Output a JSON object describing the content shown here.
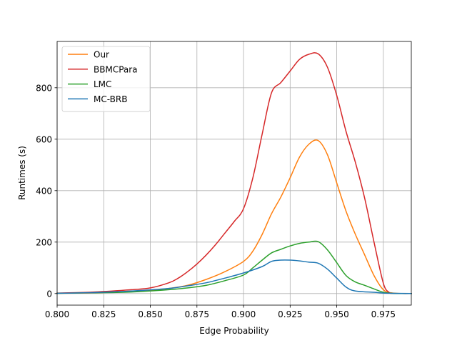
{
  "chart_data": {
    "type": "line",
    "title": "",
    "xlabel": "Edge Probability",
    "ylabel": "Runtimes (s)",
    "xlim": [
      0.8,
      0.99
    ],
    "ylim": [
      -45,
      980
    ],
    "grid": true,
    "legend_position": "top-left",
    "x_ticks": [
      "0.800",
      "0.825",
      "0.850",
      "0.875",
      "0.900",
      "0.925",
      "0.950",
      "0.975"
    ],
    "x_tick_values": [
      0.8,
      0.825,
      0.85,
      0.875,
      0.9,
      0.925,
      0.95,
      0.975
    ],
    "y_ticks": [
      "0",
      "200",
      "400",
      "600",
      "800"
    ],
    "y_tick_values": [
      0,
      200,
      400,
      600,
      800
    ],
    "series": [
      {
        "name": "Our",
        "color": "#ff7f0e",
        "x": [
          0.8,
          0.82,
          0.84,
          0.85,
          0.86,
          0.87,
          0.88,
          0.89,
          0.9,
          0.905,
          0.91,
          0.915,
          0.92,
          0.925,
          0.93,
          0.935,
          0.94,
          0.945,
          0.95,
          0.955,
          0.96,
          0.965,
          0.97,
          0.975,
          0.98,
          0.99
        ],
        "values": [
          1,
          3,
          8,
          12,
          20,
          32,
          55,
          85,
          125,
          165,
          230,
          310,
          375,
          450,
          530,
          580,
          595,
          540,
          430,
          320,
          230,
          150,
          70,
          15,
          2,
          0
        ]
      },
      {
        "name": "BBMCPara",
        "color": "#d62728",
        "x": [
          0.8,
          0.82,
          0.84,
          0.85,
          0.86,
          0.865,
          0.87,
          0.875,
          0.88,
          0.885,
          0.89,
          0.895,
          0.9,
          0.905,
          0.91,
          0.915,
          0.92,
          0.925,
          0.93,
          0.935,
          0.94,
          0.945,
          0.95,
          0.955,
          0.96,
          0.965,
          0.97,
          0.975,
          0.978,
          0.98,
          0.985,
          0.99
        ],
        "values": [
          2,
          6,
          15,
          22,
          42,
          60,
          85,
          115,
          150,
          190,
          235,
          280,
          330,
          450,
          620,
          780,
          820,
          865,
          910,
          930,
          932,
          880,
          770,
          630,
          510,
          370,
          200,
          40,
          5,
          1,
          0,
          0
        ]
      },
      {
        "name": "LMC",
        "color": "#2ca02c",
        "x": [
          0.8,
          0.82,
          0.84,
          0.86,
          0.87,
          0.88,
          0.89,
          0.9,
          0.905,
          0.91,
          0.915,
          0.92,
          0.925,
          0.93,
          0.935,
          0.94,
          0.945,
          0.95,
          0.955,
          0.96,
          0.965,
          0.97,
          0.975,
          0.98,
          0.99
        ],
        "values": [
          1,
          3,
          6,
          15,
          22,
          32,
          50,
          72,
          100,
          130,
          158,
          172,
          185,
          195,
          200,
          202,
          170,
          120,
          70,
          45,
          32,
          18,
          5,
          1,
          0
        ]
      },
      {
        "name": "MC-BRB",
        "color": "#1f77b4",
        "x": [
          0.8,
          0.82,
          0.84,
          0.86,
          0.87,
          0.88,
          0.89,
          0.9,
          0.91,
          0.915,
          0.92,
          0.925,
          0.93,
          0.935,
          0.94,
          0.945,
          0.95,
          0.955,
          0.96,
          0.97,
          0.975,
          0.98,
          0.99
        ],
        "values": [
          1,
          4,
          10,
          20,
          30,
          42,
          60,
          80,
          105,
          125,
          130,
          130,
          127,
          122,
          118,
          95,
          60,
          25,
          10,
          5,
          2,
          1,
          0
        ]
      }
    ]
  }
}
